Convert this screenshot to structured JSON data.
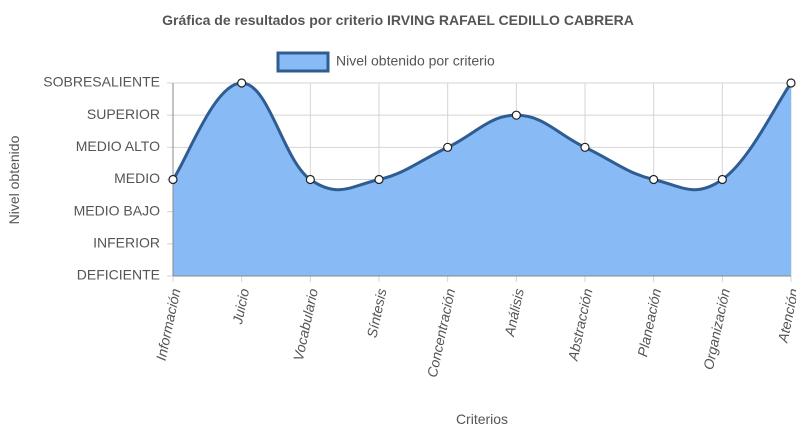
{
  "chart_data": {
    "type": "area",
    "title": "Gráfica de resultados por criterio IRVING RAFAEL CEDILLO CABRERA",
    "xlabel": "Criterios",
    "ylabel": "Nivel obtenido",
    "categories": [
      "Información",
      "Juicio",
      "Vocabulario",
      "Síntesis",
      "Concentración",
      "Análisis",
      "Abstracción",
      "Planeación",
      "Organización",
      "Atención"
    ],
    "y_levels": [
      "DEFICIENTE",
      "INFERIOR",
      "MEDIO BAJO",
      "MEDIO",
      "MEDIO ALTO",
      "SUPERIOR",
      "SOBRESALIENTE"
    ],
    "series": [
      {
        "name": "Nivel obtenido por criterio",
        "values": [
          "MEDIO",
          "SOBRESALIENTE",
          "MEDIO",
          "MEDIO",
          "MEDIO ALTO",
          "SUPERIOR",
          "MEDIO ALTO",
          "MEDIO",
          "MEDIO",
          "SOBRESALIENTE"
        ]
      }
    ],
    "legend_position": "top",
    "grid": true,
    "colors": {
      "fill": "#88baf6",
      "line": "#2f5d92",
      "grid": "#d4d4d4",
      "axis": "#888888",
      "text": "#555555"
    }
  }
}
